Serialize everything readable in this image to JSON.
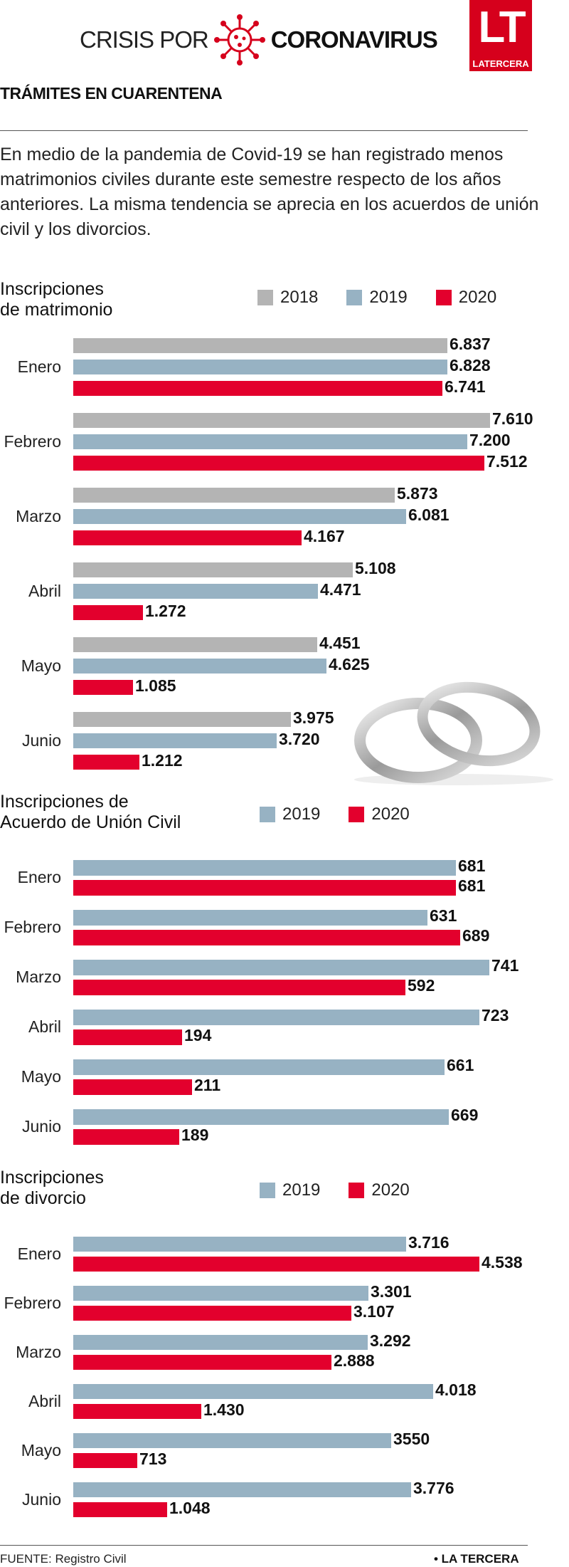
{
  "header": {
    "title_part1": "CRISIS POR",
    "title_part2": "CORONAVIRUS",
    "logo_letters": "LT",
    "logo_name": "LATERCERA",
    "icon": "virus-icon"
  },
  "kicker": "TRÁMITES EN CUARENTENA",
  "intro": "En medio de la pandemia de Covid-19 se han registrado menos matrimonios civiles durante este semestre respecto de los años anteriores. La misma tendencia se aprecia en los acuerdos de unión civil y los divorcios.",
  "colors": {
    "2018": "#b4b4b4",
    "2019": "#97b2c3",
    "2020": "#e3002d"
  },
  "chart_data": [
    {
      "type": "bar",
      "orientation": "horizontal",
      "title": "Inscripciones de matrimonio",
      "title_lines": [
        "Inscripciones",
        "de matrimonio"
      ],
      "categories": [
        "Enero",
        "Febrero",
        "Marzo",
        "Abril",
        "Mayo",
        "Junio"
      ],
      "series": [
        {
          "name": "2018",
          "values": [
            6837,
            7610,
            5873,
            5108,
            4451,
            3975
          ],
          "labels": [
            "6.837",
            "7.610",
            "5.873",
            "5.108",
            "4.451",
            "3.975"
          ]
        },
        {
          "name": "2019",
          "values": [
            6828,
            7200,
            6081,
            4471,
            4625,
            3720
          ],
          "labels": [
            "6.828",
            "7.200",
            "6.081",
            "4.471",
            "4.625",
            "3.720"
          ]
        },
        {
          "name": "2020",
          "values": [
            6741,
            7512,
            4167,
            1272,
            1085,
            1212
          ],
          "labels": [
            "6.741",
            "7.512",
            "4.167",
            "1.272",
            "1.085",
            "1.212"
          ]
        }
      ],
      "legend_position": "top-right"
    },
    {
      "type": "bar",
      "orientation": "horizontal",
      "title": "Inscripciones de Acuerdo de Unión Civil",
      "title_lines": [
        "Inscripciones de",
        "Acuerdo de Unión Civil"
      ],
      "categories": [
        "Enero",
        "Febrero",
        "Marzo",
        "Abril",
        "Mayo",
        "Junio"
      ],
      "series": [
        {
          "name": "2019",
          "values": [
            681,
            631,
            741,
            723,
            661,
            669
          ],
          "labels": [
            "681",
            "631",
            "741",
            "723",
            "661",
            "669"
          ]
        },
        {
          "name": "2020",
          "values": [
            681,
            689,
            592,
            194,
            211,
            189
          ],
          "labels": [
            "681",
            "689",
            "592",
            "194",
            "211",
            "189"
          ]
        }
      ],
      "legend_position": "top-right"
    },
    {
      "type": "bar",
      "orientation": "horizontal",
      "title": "Inscripciones de divorcio",
      "title_lines": [
        "Inscripciones",
        "de divorcio"
      ],
      "categories": [
        "Enero",
        "Febrero",
        "Marzo",
        "Abril",
        "Mayo",
        "Junio"
      ],
      "series": [
        {
          "name": "2019",
          "values": [
            3716,
            3301,
            3292,
            4018,
            3550,
            3776
          ],
          "labels": [
            "3.716",
            "3.301",
            "3.292",
            "4.018",
            "3550",
            "3.776"
          ]
        },
        {
          "name": "2020",
          "values": [
            4538,
            3107,
            2888,
            1430,
            713,
            1048
          ],
          "labels": [
            "4.538",
            "3.107",
            "2.888",
            "1.430",
            "713",
            "1.048"
          ]
        }
      ],
      "legend_position": "top-right"
    }
  ],
  "footer": {
    "source": "FUENTE: Registro Civil",
    "brand": "• LA TERCERA"
  }
}
